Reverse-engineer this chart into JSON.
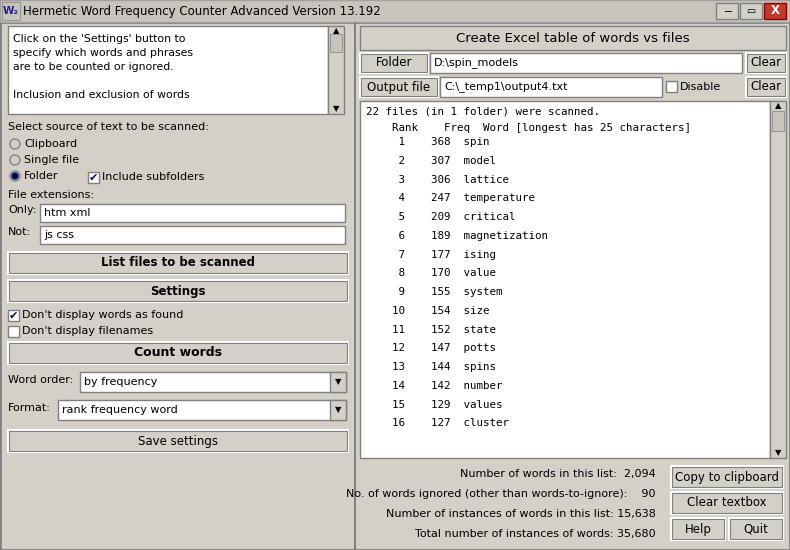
{
  "title": "Hermetic Word Frequency Counter Advanced Version 13.192",
  "bg_color": "#d4d0c8",
  "left_panel": {
    "info_text_lines": [
      "Click on the 'Settings' button to",
      "specify which words and phrases",
      "are to be counted or ignored.",
      "",
      "Inclusion and exclusion of words"
    ],
    "source_label": "Select source of text to be scanned:",
    "radio_clipboard": "Clipboard",
    "radio_single": "Single file",
    "radio_folder": "Folder",
    "checkbox_subfolders": "Include subfolders",
    "file_ext_label": "File extensions:",
    "only_label": "Only:",
    "only_value": "htm xml",
    "not_label": "Not:",
    "not_value": "js css",
    "btn_list_files": "List files to be scanned",
    "btn_settings": "Settings",
    "cb_words_label": "Don't display words as found",
    "cb_words_checked": true,
    "cb_files_label": "Don't display filenames",
    "cb_files_checked": false,
    "btn_count": "Count words",
    "word_order_label": "Word order:",
    "word_order_value": "by frequency",
    "format_label": "Format:",
    "format_value": "rank frequency word",
    "btn_save": "Save settings"
  },
  "right_panel": {
    "excel_label": "Create Excel table of words vs files",
    "folder_label": "Folder",
    "folder_value": "D:\\spin_models",
    "output_label": "Output file",
    "output_value": "C:\\_temp1\\output4.txt",
    "disable_label": "Disable",
    "btn_clear1": "Clear",
    "btn_clear2": "Clear",
    "scan_info": "22 files (in 1 folder) were scanned.",
    "col_header": "    Rank    Freq  Word [longest has 25 characters]",
    "words": [
      [
        1,
        368,
        "spin"
      ],
      [
        2,
        307,
        "model"
      ],
      [
        3,
        306,
        "lattice"
      ],
      [
        4,
        247,
        "temperature"
      ],
      [
        5,
        209,
        "critical"
      ],
      [
        6,
        189,
        "magnetization"
      ],
      [
        7,
        177,
        "ising"
      ],
      [
        8,
        170,
        "value"
      ],
      [
        9,
        155,
        "system"
      ],
      [
        10,
        154,
        "size"
      ],
      [
        11,
        152,
        "state"
      ],
      [
        12,
        147,
        "potts"
      ],
      [
        13,
        144,
        "spins"
      ],
      [
        14,
        142,
        "number"
      ],
      [
        15,
        129,
        "values"
      ],
      [
        16,
        127,
        "cluster"
      ]
    ],
    "stat1": "Number of words in this list:  2,094",
    "stat2": "No. of words ignored (other than words-to-ignore):    90",
    "stat3": "Number of instances of words in this list: 15,638",
    "stat4": "Total number of instances of words: 35,680",
    "btn_copy": "Copy to clipboard",
    "btn_clear_tb": "Clear textbox",
    "btn_help": "Help",
    "btn_quit": "Quit"
  }
}
